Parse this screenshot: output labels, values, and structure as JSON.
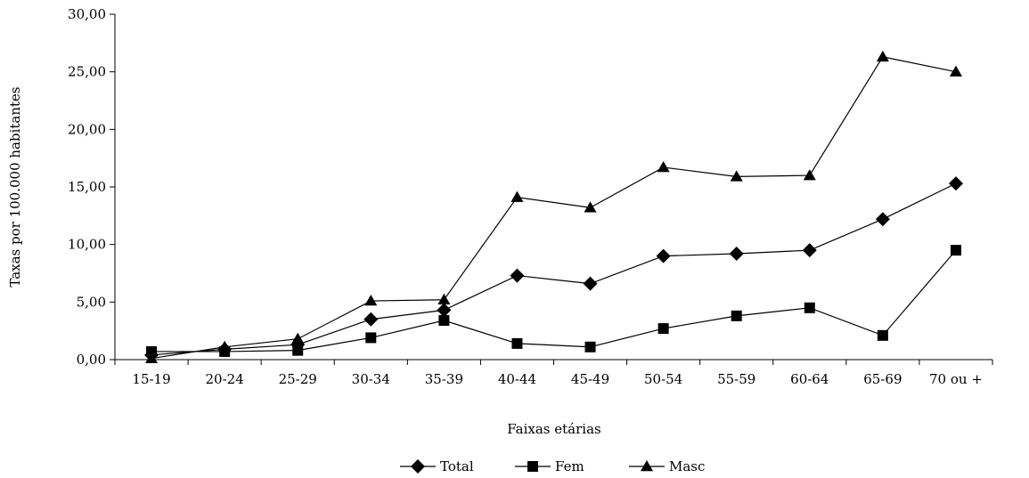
{
  "chart_data": {
    "type": "line",
    "title": "",
    "xlabel": "Faixas etárias",
    "ylabel": "Taxas por 100.000 habitantes",
    "categories": [
      "15-19",
      "20-24",
      "25-29",
      "30-34",
      "35-39",
      "40-44",
      "45-49",
      "50-54",
      "55-59",
      "60-64",
      "65-69",
      "70 ou +"
    ],
    "ylim": [
      0,
      30
    ],
    "yticks": [
      "0,00",
      "5,00",
      "10,00",
      "15,00",
      "20,00",
      "25,00",
      "30,00"
    ],
    "grid": false,
    "legend_position": "bottom",
    "series": [
      {
        "name": "Total",
        "marker": "diamond",
        "color": "#000000",
        "values": [
          0.4,
          0.9,
          1.3,
          3.5,
          4.3,
          7.3,
          6.6,
          9.0,
          9.2,
          9.5,
          12.2,
          15.3
        ]
      },
      {
        "name": "Fem",
        "marker": "square",
        "color": "#000000",
        "values": [
          0.7,
          0.7,
          0.8,
          1.9,
          3.4,
          1.4,
          1.1,
          2.7,
          3.8,
          4.5,
          2.1,
          9.5
        ]
      },
      {
        "name": "Masc",
        "marker": "triangle",
        "color": "#000000",
        "values": [
          0.1,
          1.1,
          1.8,
          5.1,
          5.2,
          14.1,
          13.2,
          16.7,
          15.9,
          16.0,
          26.3,
          25.0
        ]
      }
    ]
  }
}
